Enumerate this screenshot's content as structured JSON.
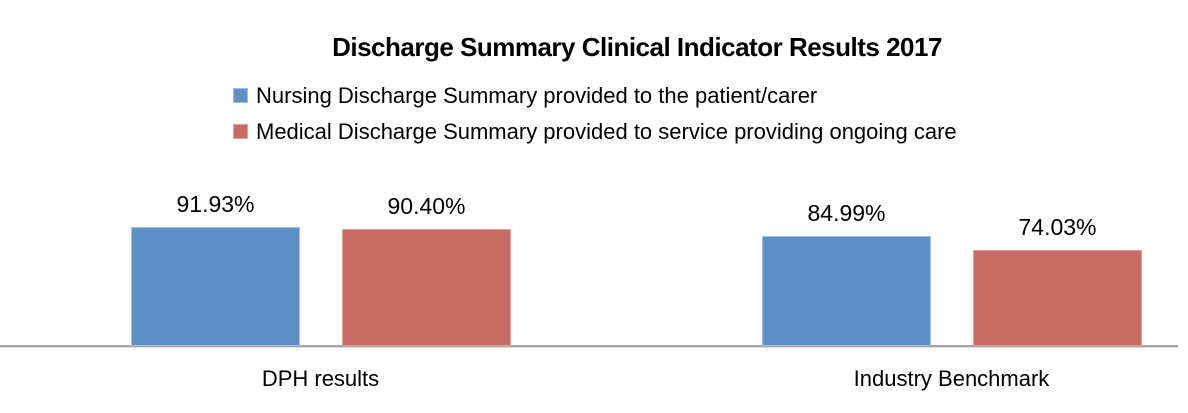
{
  "chart_data": {
    "type": "bar",
    "title": "Discharge Summary Clinical Indicator Results 2017",
    "categories": [
      "DPH results",
      "Industry Benchmark"
    ],
    "series": [
      {
        "name": "Nursing Discharge Summary provided to the patient/carer",
        "values": [
          91.93,
          84.99
        ],
        "labels": [
          "91.93%",
          "84.99%"
        ],
        "color": "#5F90C7",
        "border_color": "#A3BEDF"
      },
      {
        "name": "Medical Discharge Summary provided to service providing ongoing care",
        "values": [
          90.4,
          74.03
        ],
        "labels": [
          "90.40%",
          "74.03%"
        ],
        "color": "#C96A63",
        "border_color": "#DCA19B"
      }
    ],
    "ylim": [
      0,
      100
    ],
    "y_axis_visible": false,
    "gridlines": false,
    "x_axis_line_color": "#A6A6A6",
    "legend_position": "top-left",
    "data_label_position": "outside-end"
  }
}
